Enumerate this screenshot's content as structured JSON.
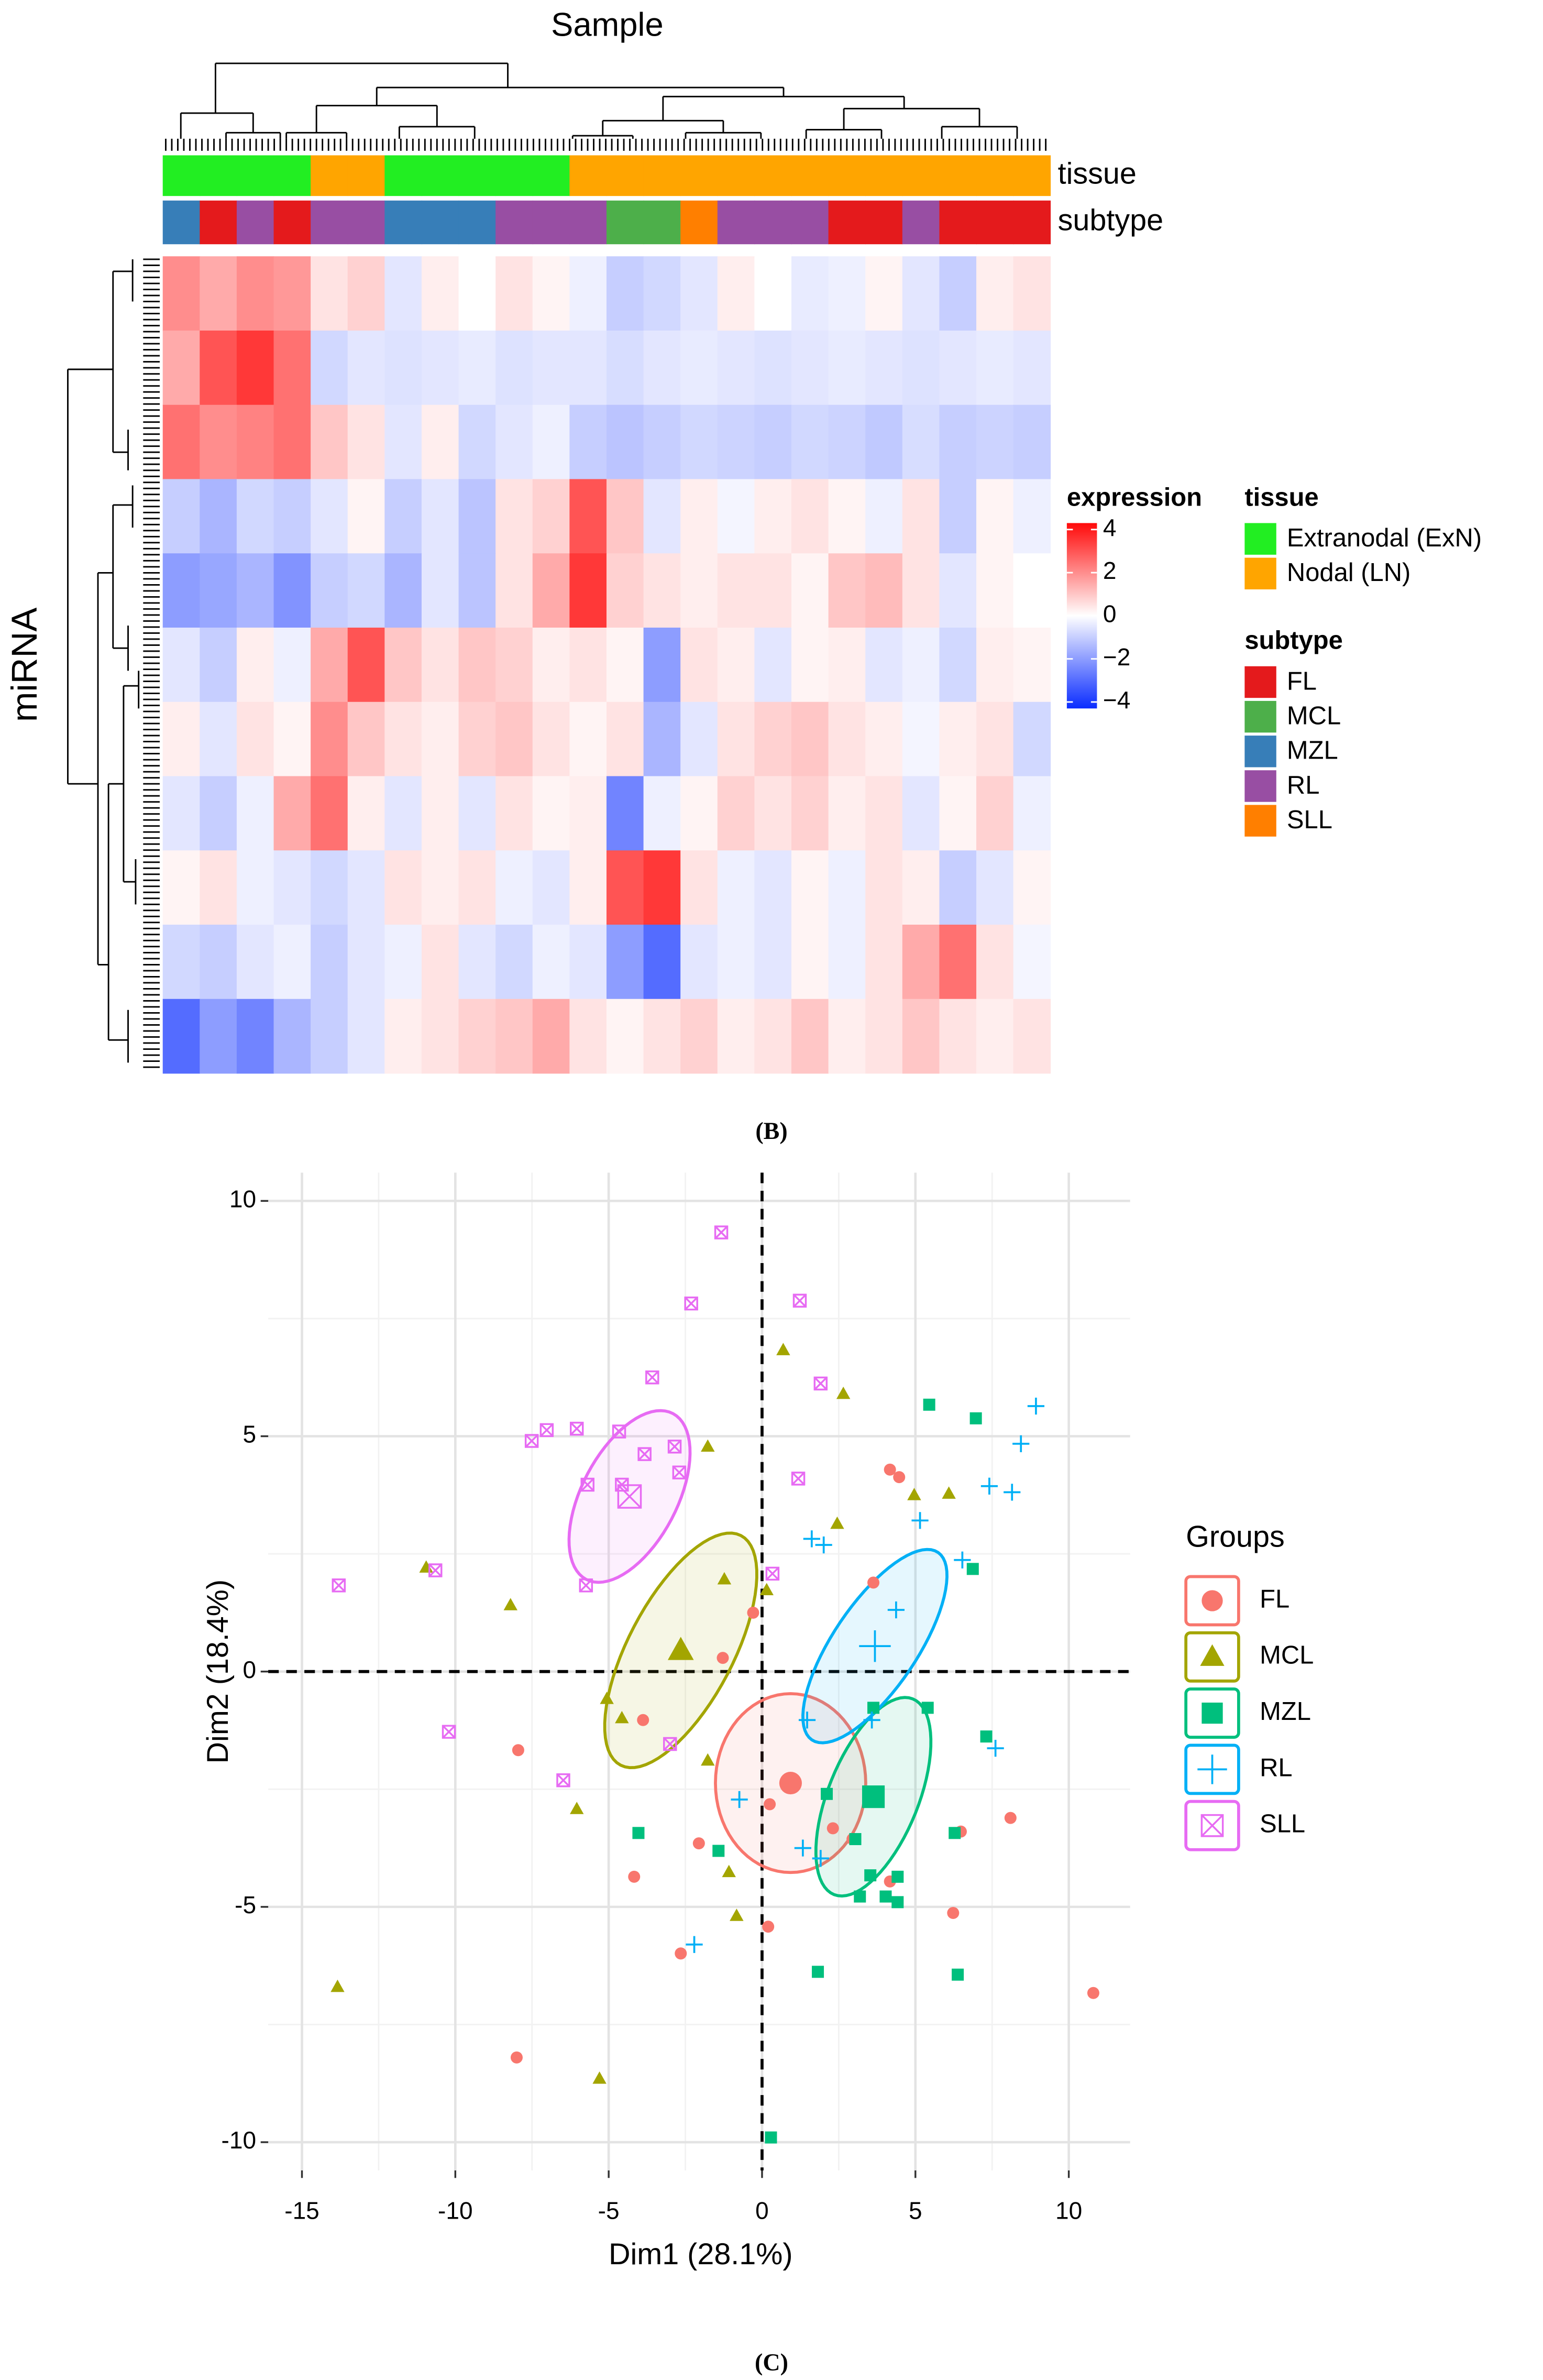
{
  "chart_data": [
    {
      "type": "heatmap",
      "title": "Sample",
      "ylabel": "miRNA",
      "colorbar": {
        "title": "expression",
        "lim": [
          -4.3,
          4.3
        ],
        "ticks": [
          {
            "value": -4,
            "label": "−4"
          },
          {
            "value": -2,
            "label": "−2"
          },
          0,
          2,
          4
        ],
        "colors": [
          "#0a2cff",
          "#ffffff",
          "#ff0a0a"
        ]
      },
      "annotations": [
        {
          "name": "tissue",
          "legend": [
            {
              "name": "Extranodal (ExN)",
              "color": "#22ee22"
            },
            {
              "name": "Nodal (LN)",
              "color": "#ffa500"
            }
          ],
          "values": [
            "Extranodal (ExN)",
            "Extranodal (ExN)",
            "Extranodal (ExN)",
            "Extranodal (ExN)",
            "Nodal (LN)",
            "Nodal (LN)",
            "Extranodal (ExN)",
            "Extranodal (ExN)",
            "Extranodal (ExN)",
            "Extranodal (ExN)",
            "Extranodal (ExN)",
            "Nodal (LN)",
            "Nodal (LN)",
            "Nodal (LN)",
            "Nodal (LN)",
            "Nodal (LN)",
            "Nodal (LN)",
            "Nodal (LN)",
            "Nodal (LN)",
            "Nodal (LN)",
            "Nodal (LN)",
            "Nodal (LN)",
            "Nodal (LN)",
            "Nodal (LN)"
          ]
        },
        {
          "name": "subtype",
          "legend": [
            {
              "name": "FL",
              "color": "#e41a1c"
            },
            {
              "name": "MCL",
              "color": "#4daf4a"
            },
            {
              "name": "MZL",
              "color": "#377eb8"
            },
            {
              "name": "RL",
              "color": "#984ea3"
            },
            {
              "name": "SLL",
              "color": "#ff7f00"
            }
          ],
          "values": [
            "MZL",
            "FL",
            "RL",
            "FL",
            "RL",
            "RL",
            "MZL",
            "MZL",
            "MZL",
            "RL",
            "RL",
            "RL",
            "MCL",
            "MCL",
            "SLL",
            "RL",
            "RL",
            "RL",
            "FL",
            "FL",
            "RL",
            "FL",
            "FL",
            "FL"
          ]
        }
      ],
      "values": [
        [
          2,
          1.5,
          2,
          1.8,
          0.5,
          0.8,
          -0.5,
          0.3,
          0,
          0.5,
          0.2,
          -0.3,
          -1,
          -0.8,
          -0.5,
          0.3,
          0,
          -0.4,
          -0.3,
          0.2,
          -0.5,
          -1,
          0.3,
          0.5
        ],
        [
          1.5,
          3,
          3.5,
          2.5,
          -0.8,
          -0.5,
          -0.6,
          -0.5,
          -0.4,
          -0.6,
          -0.5,
          -0.5,
          -0.7,
          -0.5,
          -0.4,
          -0.5,
          -0.6,
          -0.5,
          -0.4,
          -0.5,
          -0.6,
          -0.5,
          -0.4,
          -0.5
        ],
        [
          2.5,
          2,
          2.2,
          2.5,
          1,
          0.5,
          -0.5,
          0.3,
          -0.8,
          -0.5,
          -0.3,
          -1,
          -1.2,
          -1,
          -0.8,
          -0.9,
          -1,
          -0.8,
          -0.9,
          -1.1,
          -0.7,
          -1,
          -0.9,
          -1
        ],
        [
          -1,
          -1.5,
          -0.8,
          -1,
          -0.5,
          0.2,
          -1,
          -0.5,
          -1.2,
          0.5,
          0.8,
          3,
          1,
          -0.5,
          0.3,
          -0.2,
          0.3,
          0.5,
          0.2,
          -0.3,
          0.5,
          -1,
          0.2,
          -0.3
        ],
        [
          -2,
          -1.8,
          -1.5,
          -2.2,
          -1,
          -0.8,
          -1.5,
          -0.5,
          -1.2,
          0.5,
          1.5,
          3.5,
          0.8,
          0.5,
          0.3,
          0.5,
          0.5,
          0.2,
          1,
          1.2,
          0.5,
          -0.5,
          0.2,
          0
        ],
        [
          -0.5,
          -1,
          0.3,
          -0.3,
          1.5,
          3,
          1,
          0.5,
          1,
          0.8,
          0.3,
          0.5,
          0.2,
          -2,
          0.5,
          0.3,
          -0.5,
          0.2,
          0.3,
          -0.5,
          -0.3,
          -0.8,
          0.3,
          0.2
        ],
        [
          0.3,
          -0.5,
          0.5,
          0.2,
          2,
          1,
          0.5,
          0.3,
          0.8,
          1,
          0.5,
          0.2,
          0.5,
          -1.5,
          -0.5,
          0.5,
          0.8,
          1,
          0.5,
          0.3,
          -0.2,
          0.3,
          0.5,
          -0.8
        ],
        [
          -0.5,
          -1,
          -0.3,
          1.5,
          2.5,
          0.3,
          -0.5,
          0.3,
          -0.5,
          0.5,
          0.2,
          0.3,
          -2.5,
          -0.3,
          0.2,
          0.8,
          0.5,
          0.8,
          0.3,
          0.5,
          -0.5,
          0.2,
          0.8,
          -0.3
        ],
        [
          0.2,
          0.5,
          -0.3,
          -0.5,
          -0.8,
          -0.5,
          0.5,
          0.3,
          0.5,
          -0.3,
          -0.5,
          0.3,
          3,
          3.5,
          0.5,
          -0.3,
          -0.5,
          0.2,
          -0.3,
          0.5,
          0.3,
          -1,
          -0.5,
          0.2
        ],
        [
          -0.8,
          -1,
          -0.5,
          -0.3,
          -1,
          -0.5,
          -0.3,
          0.5,
          -0.5,
          -0.8,
          -0.3,
          -0.5,
          -2,
          -3,
          -0.5,
          -0.3,
          -0.5,
          0.2,
          -0.3,
          0.5,
          1.5,
          2.5,
          0.5,
          -0.2
        ],
        [
          -3,
          -2,
          -2.5,
          -1.5,
          -1,
          -0.5,
          0.3,
          0.5,
          0.8,
          1,
          1.5,
          0.5,
          0.2,
          0.5,
          0.8,
          0.3,
          0.5,
          1,
          0.3,
          0.5,
          1,
          0.5,
          0.3,
          0.5
        ]
      ],
      "caption": "(B)"
    },
    {
      "type": "scatter",
      "xlabel": "Dim1 (28.1%)",
      "ylabel": "Dim2 (18.4%)",
      "legend_title": "Groups",
      "xlim": [
        -16.1,
        12.0
      ],
      "ylim": [
        -10.6,
        10.6
      ],
      "xticks": [
        -15,
        -10,
        -5,
        0,
        5,
        10
      ],
      "yticks": [
        -10,
        -5,
        0,
        5,
        10
      ],
      "grid": true,
      "reference_lines": {
        "x": 0,
        "y": 0
      },
      "series": [
        {
          "name": "FL",
          "color": "#F8766D",
          "shape": "circle",
          "x": [
            -7.95,
            -4.17,
            -2.65,
            0.2,
            -2.06,
            -1.28,
            -0.29,
            2.31,
            2.95,
            3.63,
            4.17,
            4.47,
            4.17,
            6.23,
            6.48,
            8.1,
            10.8,
            -8.0,
            0.25,
            -3.88
          ],
          "y": [
            -1.67,
            -4.36,
            -5.99,
            -5.42,
            -3.65,
            0.29,
            1.25,
            -3.33,
            -3.56,
            1.89,
            4.29,
            4.13,
            -4.46,
            -5.13,
            -3.4,
            -3.11,
            -6.83,
            -8.2,
            -2.82,
            -1.03
          ],
          "centroid": [
            0.93,
            -2.37
          ],
          "ellipse": {
            "center": [
              0.93,
              -2.37
            ],
            "a": [
              2.45,
              0
            ],
            "b": [
              0,
              1.9
            ]
          }
        },
        {
          "name": "MCL",
          "color": "#A3A500",
          "shape": "triangle",
          "x": [
            -13.84,
            -10.95,
            -8.2,
            -6.04,
            -5.06,
            -4.57,
            -1.77,
            -1.23,
            -1.08,
            -0.83,
            0.15,
            0.69,
            2.65,
            2.45,
            4.96,
            6.09,
            -1.77,
            -5.3
          ],
          "y": [
            -6.7,
            2.21,
            1.41,
            -2.92,
            -0.58,
            -0.99,
            4.78,
            1.96,
            -4.26,
            -5.19,
            1.73,
            6.83,
            5.9,
            3.14,
            3.75,
            3.78,
            -1.89,
            -8.65
          ],
          "centroid": [
            -2.65,
            0.45
          ],
          "ellipse": {
            "center": [
              -2.65,
              0.45
            ],
            "a": [
              1.96,
              2.44
            ],
            "b": [
              1.52,
              -0.51
            ]
          }
        },
        {
          "name": "MZL",
          "color": "#00BF7D",
          "shape": "square",
          "x": [
            -4.03,
            -1.42,
            0.29,
            1.82,
            2.11,
            3.19,
            3.53,
            3.63,
            4.03,
            4.42,
            4.42,
            5.4,
            5.45,
            6.87,
            6.97,
            6.28,
            6.38,
            7.31,
            3.04
          ],
          "y": [
            -3.43,
            -3.81,
            -9.9,
            -6.38,
            -2.6,
            -4.78,
            -4.33,
            -0.77,
            -4.78,
            -4.9,
            -4.36,
            -0.77,
            5.67,
            2.18,
            5.38,
            -3.43,
            -6.44,
            -1.38,
            -3.56
          ],
          "centroid": [
            3.63,
            -2.66
          ],
          "ellipse": {
            "center": [
              3.63,
              -2.66
            ],
            "a": [
              1.28,
              2.08
            ],
            "b": [
              1.37,
              -0.35
            ]
          }
        },
        {
          "name": "RL",
          "color": "#00B0F6",
          "shape": "plus",
          "x": [
            -2.21,
            -0.74,
            1.33,
            1.47,
            1.62,
            2.01,
            3.58,
            4.37,
            5.15,
            6.53,
            7.41,
            8.15,
            8.44,
            8.93,
            7.61,
            1.91
          ],
          "y": [
            -5.8,
            -2.72,
            -3.75,
            -1.03,
            2.82,
            2.69,
            -1.03,
            1.31,
            3.21,
            2.37,
            3.94,
            3.81,
            4.84,
            5.64,
            -1.63,
            -3.97
          ],
          "centroid": [
            3.68,
            0.54
          ],
          "ellipse": {
            "center": [
              3.68,
              0.54
            ],
            "a": [
              2.06,
              1.99
            ],
            "b": [
              1.13,
              -0.51
            ]
          }
        },
        {
          "name": "SLL",
          "color": "#E76BF3",
          "shape": "square-cross",
          "x": [
            -13.8,
            -10.65,
            -10.21,
            -7.51,
            -7.02,
            -6.04,
            -5.69,
            -5.74,
            -6.48,
            -4.66,
            -4.57,
            -3.83,
            -3.58,
            -2.85,
            -2.7,
            -3.0,
            -2.31,
            -1.33,
            0.34,
            1.23,
            1.18,
            1.91
          ],
          "y": [
            1.83,
            2.15,
            -1.28,
            4.9,
            5.13,
            5.16,
            3.97,
            1.83,
            -2.31,
            5.1,
            3.97,
            4.62,
            6.25,
            4.78,
            4.23,
            -1.54,
            7.82,
            9.33,
            2.08,
            7.88,
            4.1,
            6.12
          ],
          "centroid": [
            -4.32,
            3.72
          ],
          "ellipse": {
            "center": [
              -4.32,
              3.72
            ],
            "a": [
              1.42,
              1.76
            ],
            "b": [
              1.37,
              -0.48
            ]
          }
        }
      ],
      "caption": "(C)"
    }
  ]
}
